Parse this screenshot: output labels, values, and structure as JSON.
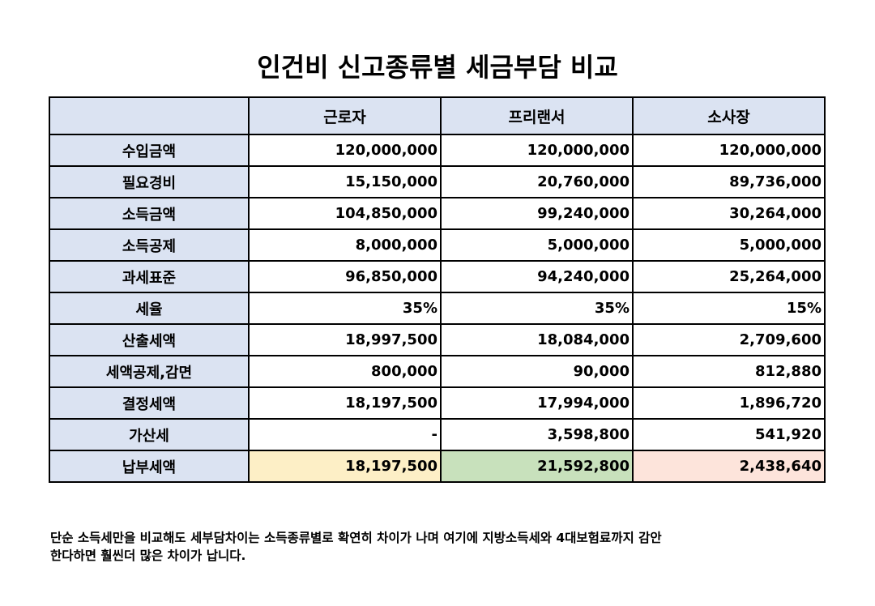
{
  "title": "인건비 신고종류별 세금부담 비교",
  "table": {
    "headers": [
      "",
      "근로자",
      "프리랜서",
      "소사장"
    ],
    "rows": [
      {
        "label": "수입금액",
        "values": [
          "120,000,000",
          "120,000,000",
          "120,000,000"
        ]
      },
      {
        "label": "필요경비",
        "values": [
          "15,150,000",
          "20,760,000",
          "89,736,000"
        ]
      },
      {
        "label": "소득금액",
        "values": [
          "104,850,000",
          "99,240,000",
          "30,264,000"
        ]
      },
      {
        "label": "소득공제",
        "values": [
          "8,000,000",
          "5,000,000",
          "5,000,000"
        ]
      },
      {
        "label": "과세표준",
        "values": [
          "96,850,000",
          "94,240,000",
          "25,264,000"
        ]
      },
      {
        "label": "세율",
        "values": [
          "35%",
          "35%",
          "15%"
        ]
      },
      {
        "label": "산출세액",
        "values": [
          "18,997,500",
          "18,084,000",
          "2,709,600"
        ]
      },
      {
        "label": "세액공제,감면",
        "values": [
          "800,000",
          "90,000",
          "812,880"
        ]
      },
      {
        "label": "결정세액",
        "values": [
          "18,197,500",
          "17,994,000",
          "1,896,720"
        ]
      },
      {
        "label": "가산세",
        "values": [
          "-",
          "3,598,800",
          "541,920"
        ]
      },
      {
        "label": "납부세액",
        "values": [
          "18,197,500",
          "21,592,800",
          "2,438,640"
        ]
      }
    ]
  },
  "highlight_colors": {
    "header_bg": "#dbe3f2",
    "worker_total": "#fdefc6",
    "freelancer_total": "#c8e1bc",
    "owner_total": "#fde4db"
  },
  "note": {
    "line1": " 단순 소득세만을 비교해도 세부담차이는 소득종류별로 확연히 차이가 나며 여기에 지방소득세와 4대보험료까지 감안",
    "line2": "한다하면 훨씬더 많은 차이가 납니다."
  }
}
